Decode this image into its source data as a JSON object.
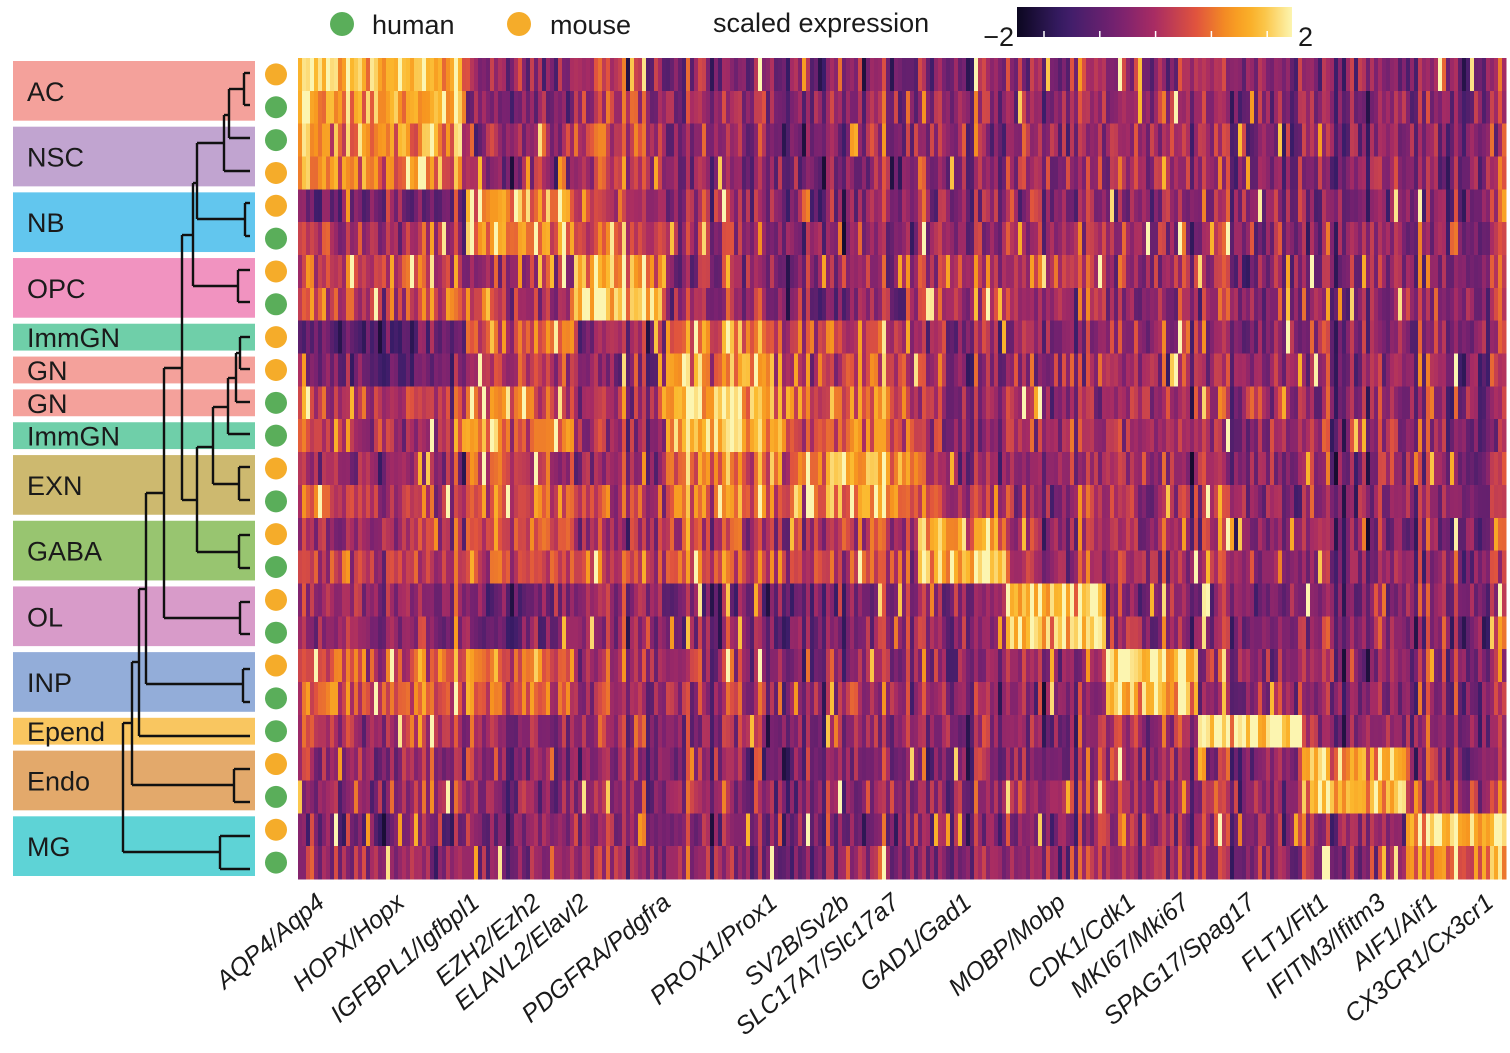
{
  "legend": {
    "species": [
      {
        "label": "human",
        "color": "#5aae5a"
      },
      {
        "label": "mouse",
        "color": "#f5ac2a"
      }
    ],
    "colorbar_title": "scaled expression",
    "colorbar_min_label": "−2",
    "colorbar_max_label": "2"
  },
  "chart_data": {
    "type": "heatmap",
    "title": "",
    "color_scale": {
      "min": -2,
      "max": 2,
      "palette": [
        "#0c0720",
        "#3b1d6a",
        "#7a2270",
        "#a82c63",
        "#e0533e",
        "#f7951f",
        "#fbb92e",
        "#fcf5b0"
      ]
    },
    "cell_types": [
      {
        "label": "AC",
        "color": "#f4a19b",
        "rows": [
          "mouse",
          "human"
        ]
      },
      {
        "label": "NSC",
        "color": "#c1a4d0",
        "rows": [
          "human",
          "mouse"
        ]
      },
      {
        "label": "NB",
        "color": "#62c6ee",
        "rows": [
          "mouse",
          "human"
        ]
      },
      {
        "label": "OPC",
        "color": "#f193c0",
        "rows": [
          "mouse",
          "human"
        ]
      },
      {
        "label": "ImmGN",
        "color": "#6fcfa9",
        "rows": [
          "mouse"
        ]
      },
      {
        "label": "GN",
        "color": "#f4a19b",
        "rows": [
          "mouse"
        ]
      },
      {
        "label": "GN",
        "color": "#f4a19b",
        "rows": [
          "human"
        ]
      },
      {
        "label": "ImmGN",
        "color": "#6fcfa9",
        "rows": [
          "human"
        ]
      },
      {
        "label": "EXN",
        "color": "#cdb96f",
        "rows": [
          "mouse",
          "human"
        ]
      },
      {
        "label": "GABA",
        "color": "#98c570",
        "rows": [
          "mouse",
          "human"
        ]
      },
      {
        "label": "OL",
        "color": "#d89bc9",
        "rows": [
          "mouse",
          "human"
        ]
      },
      {
        "label": "INP",
        "color": "#93add9",
        "rows": [
          "mouse",
          "human"
        ]
      },
      {
        "label": "Epend",
        "color": "#f9c660",
        "rows": [
          "human"
        ]
      },
      {
        "label": "Endo",
        "color": "#e3a96b",
        "rows": [
          "mouse",
          "human"
        ]
      },
      {
        "label": "MG",
        "color": "#5ed3d6",
        "rows": [
          "mouse",
          "human"
        ]
      }
    ],
    "gene_labels": [
      "AQP4/Aqp4",
      "HOPX/Hopx",
      "IGFBPL1/Igfbpl1",
      "EZH2/Ezh2",
      "ELAVL2/Elavl2",
      "PDGFRA/Pdgfra",
      "PROX1/Prox1",
      "SV2B/Sv2b",
      "SLC17A7/Slc17a7",
      "GAD1/Gad1",
      "MOBP/Mobp",
      "CDK1/Cdk1",
      "MKI67/Mki67",
      "SPAG17/Spag17",
      "FLT1/Flt1",
      "IFITM3/Ifitm3",
      "AIF1/Aif1",
      "CX3CR1/Cx3cr1"
    ],
    "marker_blocks": [
      [
        "AQP4/Aqp4",
        "HOPX/Hopx"
      ],
      [
        "IGFBPL1/Igfbpl1",
        "EZH2/Ezh2",
        "ELAVL2/Elavl2"
      ],
      [
        "PDGFRA/Pdgfra"
      ],
      [
        "PROX1/Prox1",
        "SV2B/Sv2b"
      ],
      [
        "SLC17A7/Slc17a7"
      ],
      [
        "GAD1/Gad1"
      ],
      [
        "MOBP/Mobp"
      ],
      [
        "CDK1/Cdk1",
        "MKI67/Mki67"
      ],
      [
        "SPAG17/Spag17"
      ],
      [
        "FLT1/Flt1",
        "IFITM3/Ifitm3"
      ],
      [
        "AIF1/Aif1",
        "CX3CR1/Cx3cr1"
      ]
    ],
    "mean_expression_by_row_and_block": [
      [
        1.5,
        -0.3,
        0.0,
        -0.5,
        -0.5,
        -0.3,
        -0.3,
        -0.2,
        -0.2,
        -0.2,
        -0.3
      ],
      [
        1.2,
        -0.5,
        -0.1,
        -0.3,
        -0.3,
        -0.2,
        -0.2,
        -0.2,
        -0.2,
        -0.2,
        -0.3
      ],
      [
        1.0,
        -0.2,
        0.2,
        -0.3,
        -0.3,
        -0.2,
        -0.2,
        -0.2,
        -0.2,
        -0.2,
        -0.3
      ],
      [
        0.9,
        -0.3,
        0.0,
        -0.4,
        -0.4,
        -0.3,
        -0.3,
        -0.2,
        -0.2,
        -0.2,
        -0.3
      ],
      [
        -0.8,
        1.3,
        0.2,
        -0.2,
        -0.3,
        -0.2,
        -0.3,
        -0.2,
        -0.2,
        -0.2,
        -0.3
      ],
      [
        0.0,
        1.2,
        0.3,
        -0.2,
        -0.3,
        -0.2,
        -0.3,
        -0.2,
        -0.2,
        -0.2,
        -0.3
      ],
      [
        0.4,
        0.0,
        1.3,
        -0.3,
        -0.3,
        0.2,
        0.1,
        -0.2,
        -0.2,
        -0.2,
        -0.3
      ],
      [
        0.4,
        0.2,
        1.6,
        -0.3,
        -0.3,
        0.3,
        -0.1,
        -0.2,
        -0.2,
        -0.2,
        -0.3
      ],
      [
        -0.8,
        0.6,
        -0.3,
        0.8,
        0.5,
        -0.2,
        -0.3,
        -0.2,
        -0.2,
        -0.2,
        -0.3
      ],
      [
        -0.7,
        0.2,
        -0.4,
        1.0,
        0.4,
        -0.2,
        -0.3,
        -0.2,
        -0.2,
        -0.2,
        -0.3
      ],
      [
        0.1,
        0.6,
        -0.2,
        1.5,
        0.7,
        -0.1,
        -0.2,
        -0.1,
        0.0,
        -0.2,
        -0.3
      ],
      [
        0.2,
        0.8,
        -0.2,
        1.4,
        0.6,
        -0.1,
        -0.2,
        -0.1,
        0.0,
        -0.2,
        -0.3
      ],
      [
        -0.3,
        0.3,
        -0.3,
        0.8,
        1.3,
        -0.1,
        -0.3,
        -0.2,
        -0.2,
        -0.2,
        -0.3
      ],
      [
        0.2,
        0.5,
        0.2,
        1.0,
        1.1,
        0.4,
        -0.2,
        -0.1,
        -0.1,
        -0.2,
        -0.3
      ],
      [
        -0.2,
        0.5,
        -0.3,
        0.2,
        0.3,
        1.2,
        -0.3,
        -0.2,
        -0.2,
        -0.2,
        -0.3
      ],
      [
        0.2,
        0.6,
        0.3,
        0.5,
        0.4,
        1.6,
        -0.2,
        -0.1,
        -0.1,
        -0.2,
        -0.3
      ],
      [
        -0.2,
        -0.5,
        -0.3,
        -0.6,
        -0.5,
        -0.3,
        1.5,
        -0.3,
        -0.3,
        -0.3,
        -0.3
      ],
      [
        -0.3,
        -0.5,
        -0.3,
        -0.5,
        -0.4,
        -0.3,
        1.5,
        -0.3,
        -0.3,
        -0.3,
        -0.3
      ],
      [
        0.5,
        0.9,
        -0.1,
        -0.2,
        -0.3,
        -0.2,
        -0.3,
        1.6,
        -0.2,
        -0.2,
        -0.3
      ],
      [
        0.6,
        0.7,
        0.0,
        -0.1,
        -0.2,
        -0.2,
        -0.3,
        1.5,
        -0.2,
        -0.2,
        -0.3
      ],
      [
        0.1,
        -0.2,
        -0.2,
        -0.3,
        -0.3,
        -0.2,
        -0.3,
        -0.2,
        2.0,
        -0.2,
        -0.3
      ],
      [
        -0.2,
        -0.3,
        -0.3,
        -0.4,
        -0.4,
        -0.3,
        -0.3,
        -0.2,
        -0.2,
        1.4,
        -0.2
      ],
      [
        -0.1,
        -0.2,
        -0.2,
        -0.3,
        -0.3,
        -0.2,
        -0.2,
        -0.2,
        -0.1,
        1.5,
        -0.1
      ],
      [
        -0.6,
        -0.4,
        -0.3,
        -0.4,
        -0.4,
        -0.3,
        -0.3,
        -0.2,
        -0.2,
        -0.2,
        1.5
      ],
      [
        -0.2,
        -0.3,
        -0.2,
        -0.3,
        -0.3,
        -0.2,
        -0.2,
        -0.2,
        -0.1,
        -0.1,
        1.0
      ]
    ]
  }
}
